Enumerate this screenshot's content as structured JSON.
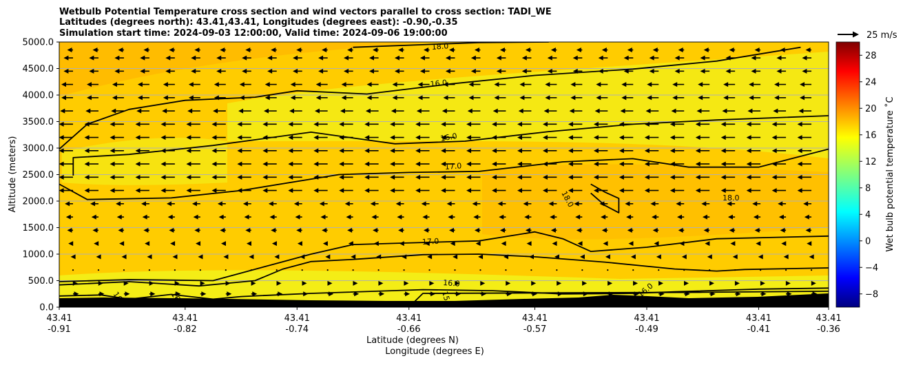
{
  "chart_data": {
    "type": "contour_cross_section",
    "title_lines": [
      "Wetbulb Potential Temperature cross section and wind vectors parallel to cross section: TADI_WE",
      "Latitudes (degrees north): 43.41,43.41, Longitudes (degrees east): -0.90,-0.35",
      "Simulation start time: 2024-09-03 12:00:00, Valid time: 2024-09-06 19:00:00"
    ],
    "ylabel": "Altitude (meters)",
    "xlabel_lat": "Latitude (degrees N)",
    "xlabel_lon": "Longitude (degrees E)",
    "ylim": [
      0,
      5000
    ],
    "yticks": [
      "0.0",
      "500.0",
      "1000.0",
      "1500.0",
      "2000.0",
      "2500.0",
      "3000.0",
      "3500.0",
      "4000.0",
      "4500.0",
      "5000.0"
    ],
    "ytick_values": [
      0,
      500,
      1000,
      1500,
      2000,
      2500,
      3000,
      3500,
      4000,
      4500,
      5000
    ],
    "xlim": [
      -0.91,
      -0.36
    ],
    "xticks": [
      {
        "lon_value": -0.91,
        "lat": "43.41",
        "lon": "-0.91"
      },
      {
        "lon_value": -0.82,
        "lat": "43.41",
        "lon": "-0.82"
      },
      {
        "lon_value": -0.74,
        "lat": "43.41",
        "lon": "-0.74"
      },
      {
        "lon_value": -0.66,
        "lat": "43.41",
        "lon": "-0.66"
      },
      {
        "lon_value": -0.57,
        "lat": "43.41",
        "lon": "-0.57"
      },
      {
        "lon_value": -0.49,
        "lat": "43.41",
        "lon": "-0.49"
      },
      {
        "lon_value": -0.41,
        "lat": "43.41",
        "lon": "-0.41"
      },
      {
        "lon_value": -0.36,
        "lat": "43.41",
        "lon": "-0.36"
      }
    ],
    "grid": "horizontal",
    "colorbar": {
      "label": "Wet bulb potential temperature ˚C",
      "range": [
        -10,
        30
      ],
      "ticks": [
        "−8",
        "−4",
        "0",
        "4",
        "8",
        "12",
        "16",
        "20",
        "24",
        "28"
      ],
      "tick_values": [
        -8,
        -4,
        0,
        4,
        8,
        12,
        16,
        20,
        24,
        28
      ],
      "colormap": "jet"
    },
    "quiver_key": {
      "label": "25 m/s",
      "speed": 25
    },
    "contour_labels": [
      "18.0",
      "16.0",
      "16.0",
      "17.0",
      "18.0",
      "18.0",
      "17.0",
      "16.0",
      "16",
      "16",
      "15",
      "16.0"
    ],
    "contours": [
      {
        "level": 15,
        "points": [
          [
            -0.66,
            0
          ],
          [
            -0.65,
            260
          ],
          [
            -0.45,
            280
          ],
          [
            -0.36,
            300
          ]
        ]
      },
      {
        "level": 16,
        "points": [
          [
            -0.91,
            210
          ],
          [
            -0.88,
            230
          ],
          [
            -0.86,
            150
          ],
          [
            -0.83,
            240
          ],
          [
            -0.8,
            150
          ],
          [
            -0.78,
            200
          ],
          [
            -0.73,
            260
          ],
          [
            -0.65,
            330
          ],
          [
            -0.6,
            310
          ],
          [
            -0.55,
            250
          ],
          [
            -0.5,
            260
          ],
          [
            -0.47,
            290
          ],
          [
            -0.41,
            340
          ],
          [
            -0.36,
            360
          ]
        ]
      },
      {
        "level": 16,
        "points": [
          [
            -0.91,
            420
          ],
          [
            -0.86,
            480
          ],
          [
            -0.81,
            400
          ],
          [
            -0.77,
            500
          ],
          [
            -0.75,
            720
          ],
          [
            -0.73,
            860
          ],
          [
            -0.7,
            900
          ],
          [
            -0.65,
            990
          ],
          [
            -0.61,
            1000
          ],
          [
            -0.57,
            950
          ],
          [
            -0.52,
            850
          ],
          [
            -0.47,
            720
          ],
          [
            -0.44,
            680
          ],
          [
            -0.42,
            710
          ],
          [
            -0.36,
            740
          ]
        ]
      },
      {
        "level": 17,
        "points": [
          [
            -0.91,
            480
          ],
          [
            -0.86,
            520
          ],
          [
            -0.8,
            500
          ],
          [
            -0.73,
            1000
          ],
          [
            -0.7,
            1180
          ],
          [
            -0.65,
            1220
          ],
          [
            -0.61,
            1250
          ],
          [
            -0.57,
            1420
          ],
          [
            -0.55,
            1290
          ],
          [
            -0.53,
            1050
          ],
          [
            -0.49,
            1130
          ],
          [
            -0.44,
            1290
          ],
          [
            -0.36,
            1340
          ]
        ]
      },
      {
        "level": 17,
        "points": [
          [
            -0.91,
            2320
          ],
          [
            -0.89,
            2030
          ],
          [
            -0.83,
            2060
          ],
          [
            -0.78,
            2200
          ],
          [
            -0.71,
            2500
          ],
          [
            -0.66,
            2540
          ],
          [
            -0.61,
            2560
          ],
          [
            -0.55,
            2740
          ],
          [
            -0.5,
            2800
          ],
          [
            -0.46,
            2640
          ],
          [
            -0.41,
            2640
          ],
          [
            -0.36,
            2980
          ]
        ]
      },
      {
        "level": 18,
        "points": [
          [
            -0.53,
            2320
          ],
          [
            -0.52,
            2170
          ],
          [
            -0.51,
            2050
          ],
          [
            -0.51,
            1780
          ],
          [
            -0.52,
            1920
          ],
          [
            -0.53,
            2150
          ]
        ]
      },
      {
        "level": 16,
        "points": [
          [
            -0.9,
            2480
          ],
          [
            -0.9,
            2820
          ],
          [
            -0.86,
            2880
          ],
          [
            -0.8,
            3050
          ],
          [
            -0.73,
            3300
          ],
          [
            -0.67,
            3080
          ],
          [
            -0.62,
            3130
          ],
          [
            -0.56,
            3310
          ],
          [
            -0.5,
            3450
          ],
          [
            -0.44,
            3530
          ],
          [
            -0.36,
            3610
          ]
        ]
      },
      {
        "level": 16,
        "points": [
          [
            -0.91,
            2980
          ],
          [
            -0.89,
            3450
          ],
          [
            -0.86,
            3730
          ],
          [
            -0.82,
            3900
          ],
          [
            -0.77,
            3960
          ],
          [
            -0.74,
            4080
          ],
          [
            -0.69,
            4020
          ],
          [
            -0.63,
            4210
          ],
          [
            -0.57,
            4370
          ],
          [
            -0.5,
            4490
          ],
          [
            -0.44,
            4640
          ],
          [
            -0.38,
            4900
          ]
        ]
      },
      {
        "level": 18,
        "points": [
          [
            -0.7,
            4900
          ],
          [
            -0.66,
            4940
          ],
          [
            -0.61,
            4990
          ],
          [
            -0.56,
            5000
          ]
        ]
      }
    ],
    "wind_rows": [
      {
        "alt": 4850,
        "u": -5
      },
      {
        "alt": 4700,
        "u": -8
      },
      {
        "alt": 4450,
        "u": -8
      },
      {
        "alt": 4200,
        "u": -10
      },
      {
        "alt": 3950,
        "u": -10
      },
      {
        "alt": 3700,
        "u": -11
      },
      {
        "alt": 3450,
        "u": -12
      },
      {
        "alt": 3200,
        "u": -12
      },
      {
        "alt": 2950,
        "u": -12
      },
      {
        "alt": 2700,
        "u": -12
      },
      {
        "alt": 2450,
        "u": -12
      },
      {
        "alt": 2200,
        "u": -12
      },
      {
        "alt": 1950,
        "u": -7
      },
      {
        "alt": 1700,
        "u": -6
      },
      {
        "alt": 1450,
        "u": -5
      },
      {
        "alt": 1200,
        "u": -4
      },
      {
        "alt": 950,
        "u": -2
      },
      {
        "alt": 700,
        "u": 1
      },
      {
        "alt": 450,
        "u": 4
      },
      {
        "alt": 250,
        "u": 5
      }
    ],
    "wind_columns": 30
  },
  "colors": {
    "background_field": "#ffcc00",
    "warm_field": "#ffb800",
    "cool_field": "#f2f21a",
    "terrain": "#000000",
    "grid": "#b0b0b0"
  }
}
